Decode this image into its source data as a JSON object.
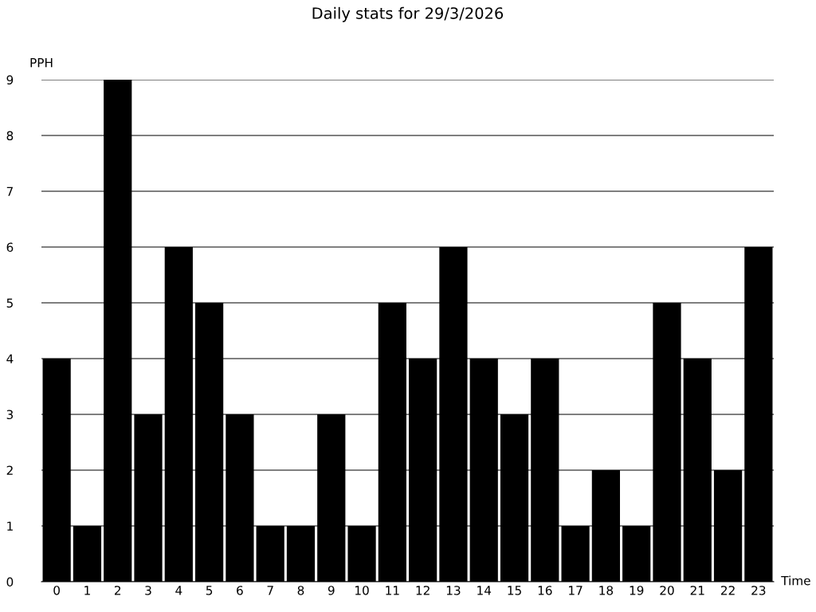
{
  "chart_data": {
    "type": "bar",
    "title": "Daily stats for 29/3/2026",
    "xlabel": "Time",
    "ylabel": "PPH",
    "categories": [
      "0",
      "1",
      "2",
      "3",
      "4",
      "5",
      "6",
      "7",
      "8",
      "9",
      "10",
      "11",
      "12",
      "13",
      "14",
      "15",
      "16",
      "17",
      "18",
      "19",
      "20",
      "21",
      "22",
      "23"
    ],
    "values": [
      4,
      1,
      9,
      3,
      6,
      5,
      3,
      1,
      1,
      3,
      1,
      5,
      4,
      6,
      4,
      3,
      4,
      1,
      2,
      1,
      5,
      4,
      2,
      6
    ],
    "color": "#000000",
    "ylim": [
      0,
      9
    ],
    "yticks": [
      0,
      1,
      2,
      3,
      4,
      5,
      6,
      7,
      8,
      9
    ],
    "grid": "y"
  }
}
